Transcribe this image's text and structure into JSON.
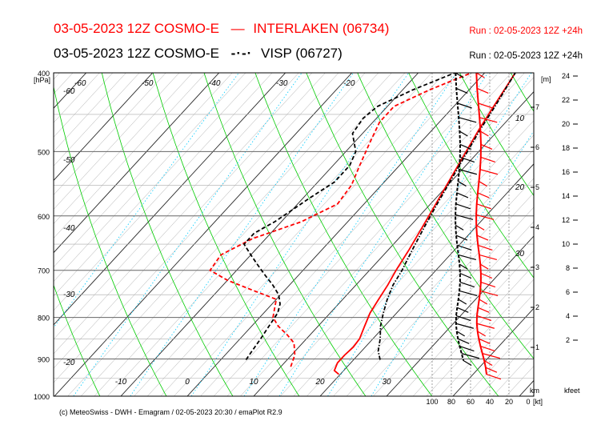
{
  "header": {
    "line1_date_model": "03-05-2023 12Z COSMO-E",
    "line1_legend_symbol": "—",
    "line1_station": "INTERLAKEN (06734)",
    "line1_run": "Run : 02-05-2023 12Z +24h",
    "line2_date_model": "03-05-2023 12Z COSMO-E",
    "line2_legend_symbol": "-·-·",
    "line2_station": "VISP (06727)",
    "line2_run": "Run : 02-05-2023 12Z +24h"
  },
  "footer": {
    "text": "(c) MeteoSwiss - DWH - Emagram / 02-05-2023  20:30 / emaPlot R2.9"
  },
  "colors": {
    "interlaken": "#ff0000",
    "visp": "#000000",
    "isotherm": "#000000",
    "dry_adiabat": "#00cc00",
    "mixing_ratio": "#00ccff",
    "grid": "#808080"
  },
  "chart_data": {
    "type": "line",
    "title": "Emagram",
    "y_axis": {
      "unit": "[hPa]",
      "ticks": [
        400,
        500,
        600,
        700,
        800,
        900,
        1000
      ],
      "ylim": [
        1000,
        400
      ],
      "scale": "log"
    },
    "x_axis": {
      "unit": "°C",
      "tick_labels": [
        "-10",
        "0",
        "10",
        "20",
        "30"
      ],
      "xlim": [
        -20,
        35
      ]
    },
    "skew_isotherm_labels": [
      "-60",
      "-50",
      "-40",
      "-30",
      "-20"
    ],
    "top_isotherm_labels": [
      "-60",
      "-50",
      "-40",
      "-30",
      "-20"
    ],
    "height_axis_m": {
      "unit": "[m]",
      "ticks": [
        "1",
        "2",
        "3",
        "4",
        "5",
        "6",
        "7"
      ]
    },
    "height_axis_kfeet": {
      "unit": "kfeet",
      "ticks": [
        "2",
        "4",
        "6",
        "8",
        "10",
        "12",
        "14",
        "16",
        "18",
        "20",
        "22",
        "24"
      ]
    },
    "wind_axis": {
      "unit": "[kt]",
      "ticks": [
        "100",
        "80",
        "60",
        "40",
        "20",
        "0"
      ],
      "km_label": "km",
      "side_labels": [
        "10",
        "20",
        "30"
      ]
    },
    "series": [
      {
        "name": "INTERLAKEN (06734) temperature",
        "style": "solid",
        "color": "#ff0000",
        "points": [
          [
            940,
            19.8
          ],
          [
            930,
            18.6
          ],
          [
            910,
            18
          ],
          [
            890,
            18
          ],
          [
            870,
            18.2
          ],
          [
            850,
            18
          ],
          [
            820,
            17
          ],
          [
            790,
            16
          ],
          [
            760,
            15.4
          ],
          [
            730,
            14.8
          ],
          [
            700,
            14
          ],
          [
            660,
            13.1
          ],
          [
            620,
            12
          ],
          [
            580,
            10.8
          ],
          [
            540,
            9.5
          ],
          [
            500,
            8.1
          ],
          [
            470,
            7
          ],
          [
            440,
            6
          ],
          [
            400,
            4.6
          ]
        ]
      },
      {
        "name": "INTERLAKEN (06734) dewpoint",
        "style": "dashed",
        "color": "#ff0000",
        "points": [
          [
            920,
            11.5
          ],
          [
            890,
            10.5
          ],
          [
            860,
            8.7
          ],
          [
            840,
            6.5
          ],
          [
            820,
            4
          ],
          [
            800,
            2
          ],
          [
            780,
            1
          ],
          [
            760,
            0
          ],
          [
            740,
            -5
          ],
          [
            720,
            -10
          ],
          [
            700,
            -14
          ],
          [
            670,
            -14.5
          ],
          [
            640,
            -12
          ],
          [
            610,
            -7
          ],
          [
            580,
            -4
          ],
          [
            550,
            -4.5
          ],
          [
            520,
            -6
          ],
          [
            490,
            -7.5
          ],
          [
            460,
            -9
          ],
          [
            440,
            -9
          ],
          [
            420,
            -6
          ],
          [
            400,
            -2
          ]
        ]
      },
      {
        "name": "VISP (06727) temperature",
        "style": "dashdot",
        "color": "#000000",
        "points": [
          [
            902,
            24
          ],
          [
            880,
            22.5
          ],
          [
            850,
            21.1
          ],
          [
            820,
            19.4
          ],
          [
            790,
            18
          ],
          [
            760,
            16.7
          ],
          [
            730,
            15.6
          ],
          [
            700,
            14.9
          ],
          [
            660,
            13.6
          ],
          [
            620,
            12.3
          ],
          [
            580,
            11
          ],
          [
            540,
            9.7
          ],
          [
            500,
            8.3
          ],
          [
            470,
            7.2
          ],
          [
            440,
            6.2
          ],
          [
            400,
            4.6
          ]
        ]
      },
      {
        "name": "VISP (06727) dewpoint",
        "style": "dashed",
        "color": "#000000",
        "points": [
          [
            902,
            3.8
          ],
          [
            880,
            3.5
          ],
          [
            850,
            3.1
          ],
          [
            820,
            2.6
          ],
          [
            790,
            2.1
          ],
          [
            770,
            1.2
          ],
          [
            750,
            -0.3
          ],
          [
            730,
            -2.5
          ],
          [
            710,
            -5
          ],
          [
            690,
            -7.5
          ],
          [
            670,
            -10
          ],
          [
            650,
            -12.5
          ],
          [
            630,
            -12.5
          ],
          [
            610,
            -11
          ],
          [
            590,
            -10
          ],
          [
            570,
            -9
          ],
          [
            545,
            -7.5
          ],
          [
            520,
            -7.5
          ],
          [
            500,
            -8.5
          ],
          [
            475,
            -11.5
          ],
          [
            455,
            -12
          ],
          [
            440,
            -11.5
          ],
          [
            420,
            -8.5
          ],
          [
            400,
            -4.5
          ]
        ]
      }
    ]
  }
}
